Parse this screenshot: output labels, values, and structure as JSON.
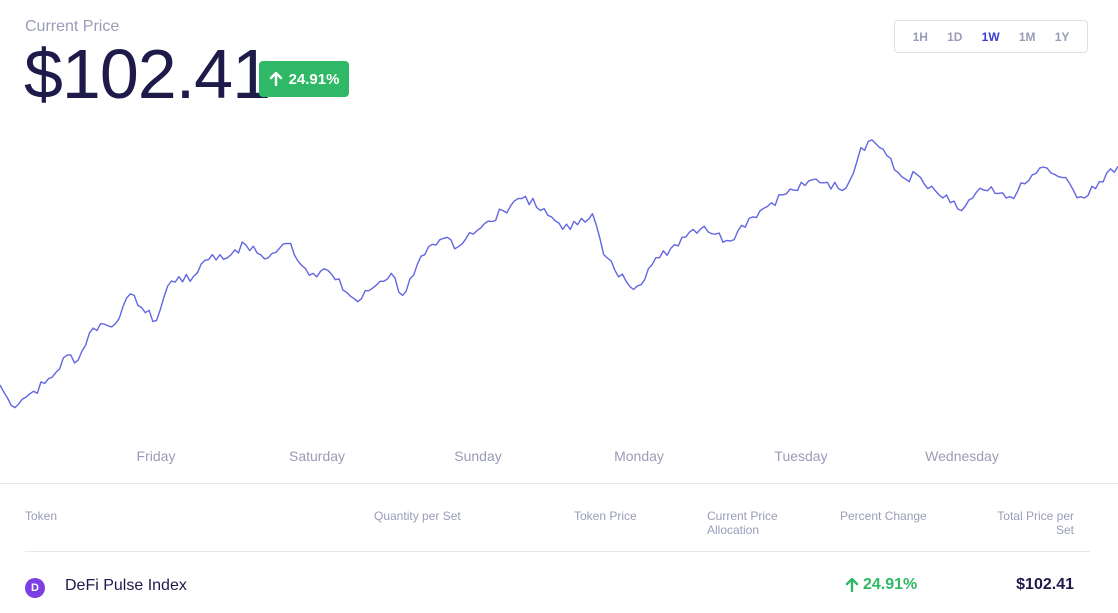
{
  "header": {
    "label": "Current Price",
    "price": "$102.41",
    "change": "24.91%"
  },
  "range_selector": [
    "1H",
    "1D",
    "1W",
    "1M",
    "1Y"
  ],
  "range_active": "1W",
  "chart_data": {
    "type": "line",
    "x_labels": [
      "Friday",
      "Saturday",
      "Sunday",
      "Monday",
      "Tuesday",
      "Wednesday"
    ],
    "series": [
      {
        "values": [
          88.5,
          87.2,
          87.6,
          88.1,
          88.6,
          89.3,
          90.4,
          90.1,
          91.8,
          92.4,
          92.2,
          93.5,
          94.2,
          93.1,
          92.6,
          94.8,
          95.4,
          95.1,
          96.2,
          96.8,
          96.5,
          97.1,
          97.4,
          96.9,
          96.6,
          97.2,
          97.5,
          96.1,
          95.6,
          95.9,
          95.2,
          94.4,
          93.8,
          94.5,
          95.1,
          95.6,
          94.2,
          95.5,
          96.8,
          97.4,
          97.9,
          97.3,
          98.2,
          98.5,
          98.9,
          99.6,
          100.2,
          100.5,
          99.8,
          99.3,
          98.8,
          98.4,
          99.1,
          99.4,
          96.8,
          95.8,
          95.1,
          94.8,
          95.9,
          96.6,
          97.2,
          97.9,
          98.4,
          98.6,
          98.1,
          97.7,
          98.3,
          99.1,
          99.6,
          100.1,
          100.6,
          100.9,
          101.2,
          101.6,
          101.4,
          101.0,
          101.5,
          103.6,
          104.1,
          103.5,
          102.2,
          101.6,
          101.9,
          101.0,
          100.6,
          100.1,
          99.6,
          100.4,
          100.9,
          100.7,
          100.4,
          100.8,
          101.5,
          102.3,
          102.0,
          101.7,
          100.9,
          100.4,
          101.0,
          102.0,
          102.41
        ],
        "color": "#6266e0"
      }
    ],
    "ylim": [
      85,
      106
    ]
  },
  "table": {
    "headers": [
      "Token",
      "Quantity per Set",
      "Token Price",
      "Current Price Allocation",
      "Percent Change",
      "Total Price per Set"
    ],
    "row": {
      "icon_letter": "D",
      "name": "DeFi Pulse Index",
      "change": "24.91%",
      "total": "$102.41"
    }
  },
  "colors": {
    "accent": "#3b3bd0",
    "positive": "#2fb865",
    "line": "#6266e0",
    "text_dark": "#1e1b4b",
    "text_muted": "#9a9cb8"
  }
}
